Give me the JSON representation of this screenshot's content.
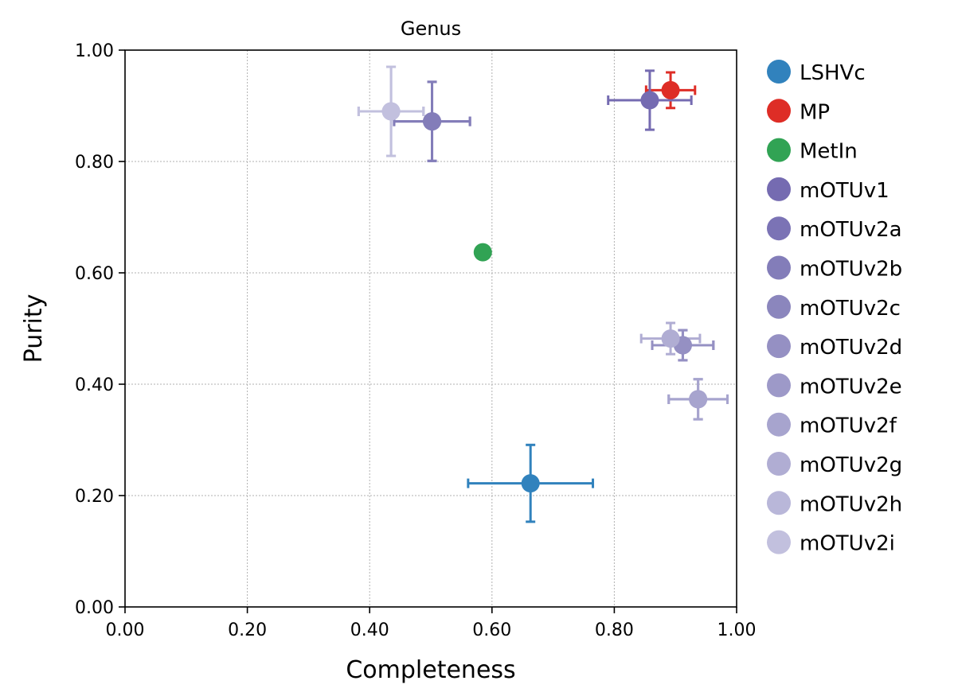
{
  "chart_data": {
    "type": "scatter",
    "title": "Genus",
    "xlabel": "Completeness",
    "ylabel": "Purity",
    "xlim": [
      0,
      1
    ],
    "ylim": [
      0,
      1
    ],
    "xticks": [
      "0.00",
      "0.20",
      "0.40",
      "0.60",
      "0.80",
      "1.00"
    ],
    "yticks": [
      "0.00",
      "0.20",
      "0.40",
      "0.60",
      "0.80",
      "1.00"
    ],
    "grid": true,
    "legend_position": "right-outside",
    "series": [
      {
        "name": "LSHVc",
        "color": "#3182bd",
        "x": 0.663,
        "y": 0.222,
        "xerr": 0.102,
        "yerr": 0.069
      },
      {
        "name": "MP",
        "color": "#de2d26",
        "x": 0.892,
        "y": 0.928,
        "xerr": 0.04,
        "yerr": 0.032
      },
      {
        "name": "MetIn",
        "color": "#31a354",
        "x": 0.585,
        "y": 0.637,
        "xerr": 0,
        "yerr": 0
      },
      {
        "name": "mOTUv1",
        "color": "#756bb1",
        "x": 0.858,
        "y": 0.91,
        "xerr": 0.068,
        "yerr": 0.053
      },
      {
        "name": "mOTUv2a",
        "color": "#7b73b5",
        "x": 0.502,
        "y": 0.872,
        "xerr": 0.062,
        "yerr": 0.071
      },
      {
        "name": "mOTUv2b",
        "color": "#837db9",
        "x": 0.502,
        "y": 0.872,
        "xerr": 0.062,
        "yerr": 0.071
      },
      {
        "name": "mOTUv2c",
        "color": "#8b86bd",
        "x": 0.912,
        "y": 0.47,
        "xerr": 0.05,
        "yerr": 0.027
      },
      {
        "name": "mOTUv2d",
        "color": "#9590c3",
        "x": 0.912,
        "y": 0.47,
        "xerr": 0.05,
        "yerr": 0.027
      },
      {
        "name": "mOTUv2e",
        "color": "#9d99c8",
        "x": 0.937,
        "y": 0.373,
        "xerr": 0.048,
        "yerr": 0.036
      },
      {
        "name": "mOTUv2f",
        "color": "#a7a4ce",
        "x": 0.937,
        "y": 0.373,
        "xerr": 0.048,
        "yerr": 0.036
      },
      {
        "name": "mOTUv2g",
        "color": "#b0add3",
        "x": 0.892,
        "y": 0.482,
        "xerr": 0.048,
        "yerr": 0.028
      },
      {
        "name": "mOTUv2h",
        "color": "#b9b7d9",
        "x": 0.435,
        "y": 0.89,
        "xerr": 0.053,
        "yerr": 0.08
      },
      {
        "name": "mOTUv2i",
        "color": "#c2c0de",
        "x": 0.435,
        "y": 0.89,
        "xerr": 0.053,
        "yerr": 0.08
      }
    ]
  }
}
